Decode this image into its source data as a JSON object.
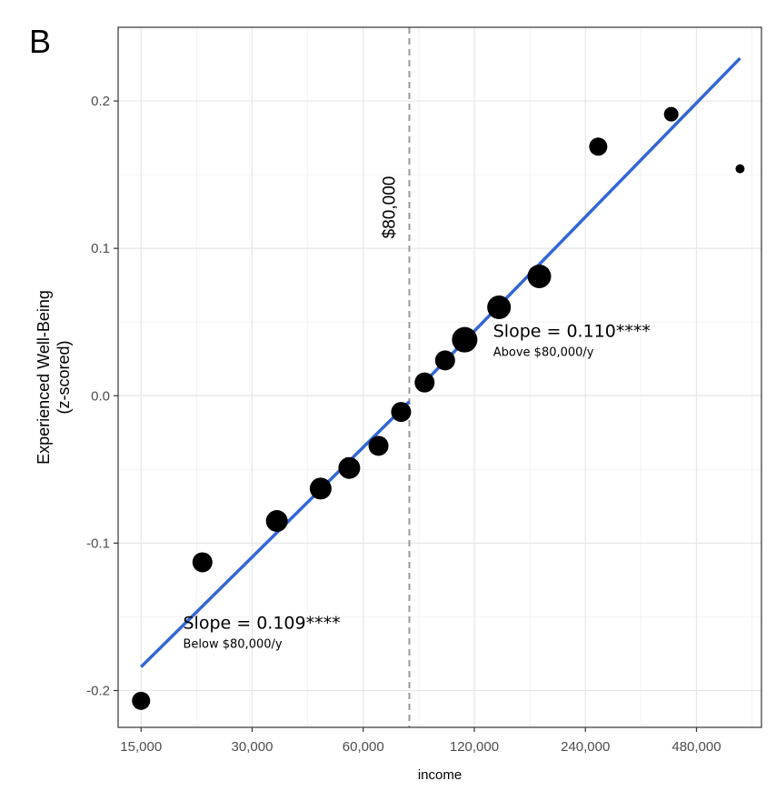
{
  "panel_letter": "B",
  "chart_data": {
    "type": "scatter",
    "xlabel": "income",
    "ylabel_lines": [
      "Experienced Well-Being",
      "(z-scored)"
    ],
    "x_scale": "log2",
    "xlim": [
      13000,
      720000
    ],
    "ylim": [
      -0.225,
      0.25
    ],
    "x_ticks": [
      15000,
      30000,
      60000,
      120000,
      240000,
      480000
    ],
    "x_tick_labels": [
      "15,000",
      "30,000",
      "60,000",
      "120,000",
      "240,000",
      "480,000"
    ],
    "y_ticks": [
      -0.2,
      -0.1,
      0.0,
      0.1,
      0.2
    ],
    "y_tick_labels": [
      "-0.2",
      "-0.1",
      "0.0",
      "0.1",
      "0.2"
    ],
    "grid": true,
    "reference_line": {
      "x": 80000,
      "label": "$80,000",
      "style": "dashed",
      "color": "#999999"
    },
    "points": [
      {
        "x": 15000,
        "y": -0.207,
        "size": 10
      },
      {
        "x": 22000,
        "y": -0.113,
        "size": 11
      },
      {
        "x": 35000,
        "y": -0.085,
        "size": 12
      },
      {
        "x": 46000,
        "y": -0.063,
        "size": 12
      },
      {
        "x": 55000,
        "y": -0.049,
        "size": 12
      },
      {
        "x": 66000,
        "y": -0.034,
        "size": 11
      },
      {
        "x": 76000,
        "y": -0.011,
        "size": 11
      },
      {
        "x": 88000,
        "y": 0.009,
        "size": 11
      },
      {
        "x": 100000,
        "y": 0.024,
        "size": 11
      },
      {
        "x": 113000,
        "y": 0.038,
        "size": 14
      },
      {
        "x": 140000,
        "y": 0.06,
        "size": 13
      },
      {
        "x": 180000,
        "y": 0.081,
        "size": 13
      },
      {
        "x": 260000,
        "y": 0.169,
        "size": 10
      },
      {
        "x": 410000,
        "y": 0.191,
        "size": 8
      },
      {
        "x": 630000,
        "y": 0.154,
        "size": 5
      }
    ],
    "fit_lines": [
      {
        "x": [
          15000,
          80000
        ],
        "y": [
          -0.184,
          -0.004
        ],
        "color": "#3366d6"
      },
      {
        "x": [
          87000,
          630000
        ],
        "y": [
          0.008,
          0.229
        ],
        "color": "#3366d6"
      }
    ],
    "annotations": [
      {
        "text": "Slope = 0.110****",
        "sub": "Above $80,000/y",
        "x": 135000,
        "y": 0.04
      },
      {
        "text": "Slope = 0.109****",
        "sub": "Below $80,000/y",
        "x": 19500,
        "y": -0.158
      }
    ]
  }
}
